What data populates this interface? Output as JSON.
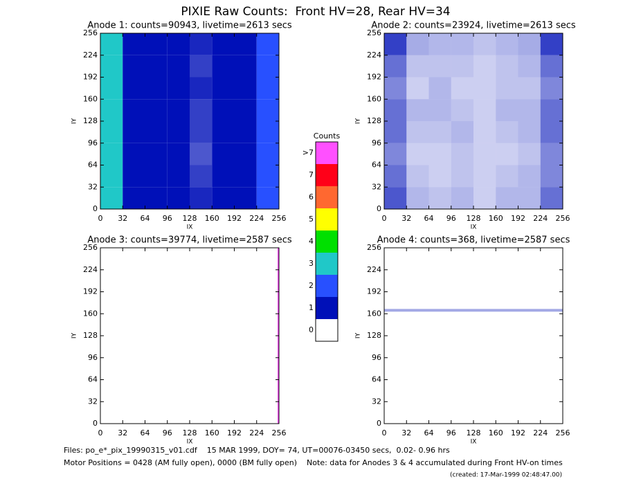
{
  "title": "PIXIE Raw Counts:  Front HV=28, Rear HV=34",
  "colorbar": {
    "title": "Counts",
    "labels": [
      "0",
      "1",
      "2",
      "3",
      "4",
      "5",
      "6",
      "7",
      ">7"
    ],
    "colors": [
      "#ffffff",
      "#0010b8",
      "#2850ff",
      "#20c8c8",
      "#00e000",
      "#ffff00",
      "#ff6830",
      "#ff0018",
      "#ff50ff"
    ]
  },
  "chart_data": [
    {
      "type": "heatmap",
      "title": "Anode 1: counts=90943, livetime=2613 secs",
      "xlabel": "IX",
      "ylabel": "IY",
      "xlim": [
        0,
        256
      ],
      "ylim": [
        0,
        256
      ],
      "xticks": [
        0,
        32,
        64,
        96,
        128,
        160,
        192,
        224,
        256
      ],
      "yticks": [
        0,
        32,
        64,
        96,
        128,
        160,
        192,
        224,
        256
      ],
      "xbins": [
        0,
        32,
        64,
        96,
        128,
        160,
        192,
        224,
        256
      ],
      "ybins": [
        0,
        32,
        64,
        96,
        128,
        160,
        192,
        224,
        256
      ],
      "z": [
        [
          3.0,
          1.3,
          1.1,
          1.0,
          0.9,
          1.2,
          1.4,
          2.6
        ],
        [
          3.2,
          1.2,
          1.2,
          1.0,
          0.8,
          1.1,
          1.3,
          2.7
        ],
        [
          3.1,
          1.1,
          1.0,
          1.1,
          0.7,
          1.0,
          1.2,
          2.5
        ],
        [
          3.3,
          1.2,
          1.3,
          1.2,
          0.8,
          1.3,
          1.4,
          2.8
        ],
        [
          3.4,
          1.3,
          1.1,
          1.0,
          0.8,
          1.2,
          1.3,
          2.9
        ],
        [
          3.2,
          1.2,
          1.2,
          1.1,
          0.9,
          1.1,
          1.2,
          2.6
        ],
        [
          3.3,
          1.3,
          1.2,
          1.0,
          0.8,
          1.2,
          1.3,
          2.7
        ],
        [
          3.1,
          1.2,
          1.1,
          1.0,
          0.9,
          1.1,
          1.2,
          2.5
        ]
      ]
    },
    {
      "type": "heatmap",
      "title": "Anode 2: counts=23924, livetime=2613 secs",
      "xlabel": "IX",
      "ylabel": "IY",
      "xlim": [
        0,
        256
      ],
      "ylim": [
        0,
        256
      ],
      "xticks": [
        0,
        32,
        64,
        96,
        128,
        160,
        192,
        224,
        256
      ],
      "yticks": [
        0,
        32,
        64,
        96,
        128,
        160,
        192,
        224,
        256
      ],
      "xbins": [
        0,
        32,
        64,
        96,
        128,
        160,
        192,
        224,
        256
      ],
      "ybins": [
        0,
        32,
        64,
        96,
        128,
        160,
        192,
        224,
        256
      ],
      "z": [
        [
          0.7,
          0.3,
          0.25,
          0.3,
          0.2,
          0.3,
          0.3,
          0.6
        ],
        [
          0.6,
          0.25,
          0.2,
          0.25,
          0.2,
          0.25,
          0.3,
          0.5
        ],
        [
          0.5,
          0.2,
          0.2,
          0.25,
          0.2,
          0.2,
          0.25,
          0.5
        ],
        [
          0.6,
          0.25,
          0.25,
          0.3,
          0.2,
          0.25,
          0.3,
          0.6
        ],
        [
          0.6,
          0.3,
          0.3,
          0.25,
          0.2,
          0.3,
          0.3,
          0.6
        ],
        [
          0.5,
          0.2,
          0.3,
          0.2,
          0.2,
          0.25,
          0.25,
          0.5
        ],
        [
          0.6,
          0.25,
          0.25,
          0.25,
          0.2,
          0.25,
          0.3,
          0.6
        ],
        [
          0.8,
          0.35,
          0.3,
          0.3,
          0.25,
          0.3,
          0.35,
          0.8
        ]
      ]
    },
    {
      "type": "heatmap",
      "title": "Anode 3: counts=39774, livetime=2587 secs",
      "xlabel": "IX",
      "ylabel": "IY",
      "xlim": [
        0,
        256
      ],
      "ylim": [
        0,
        256
      ],
      "xticks": [
        0,
        32,
        64,
        96,
        128,
        160,
        192,
        224,
        256
      ],
      "yticks": [
        0,
        32,
        64,
        96,
        128,
        160,
        192,
        224,
        256
      ],
      "xbins": [
        0,
        254,
        256
      ],
      "ybins": [
        0,
        256
      ],
      "z": [
        [
          0,
          77
        ]
      ]
    },
    {
      "type": "heatmap",
      "title": "Anode 4: counts=368, livetime=2587 secs",
      "xlabel": "IX",
      "ylabel": "IY",
      "xlim": [
        0,
        256
      ],
      "ylim": [
        0,
        256
      ],
      "xticks": [
        0,
        32,
        64,
        96,
        128,
        160,
        192,
        224,
        256
      ],
      "yticks": [
        0,
        32,
        64,
        96,
        128,
        160,
        192,
        224,
        256
      ],
      "xbins": [
        0,
        256
      ],
      "ybins": [
        0,
        163,
        167,
        256
      ],
      "z": [
        [
          0
        ],
        [
          0.36
        ],
        [
          0
        ]
      ]
    }
  ],
  "footer": {
    "files": "Files: po_e*_pix_19990315_v01.cdf    15 MAR 1999, DOY= 74, UT=00076-03450 secs,  0.02- 0.96 hrs",
    "motor": "Motor Positions = 0428 (AM fully open), 0000 (BM fully open)    Note: data for Anodes 3 & 4 accumulated during Front HV-on times",
    "created": "(created: 17-Mar-1999 02:48:47.00)"
  }
}
